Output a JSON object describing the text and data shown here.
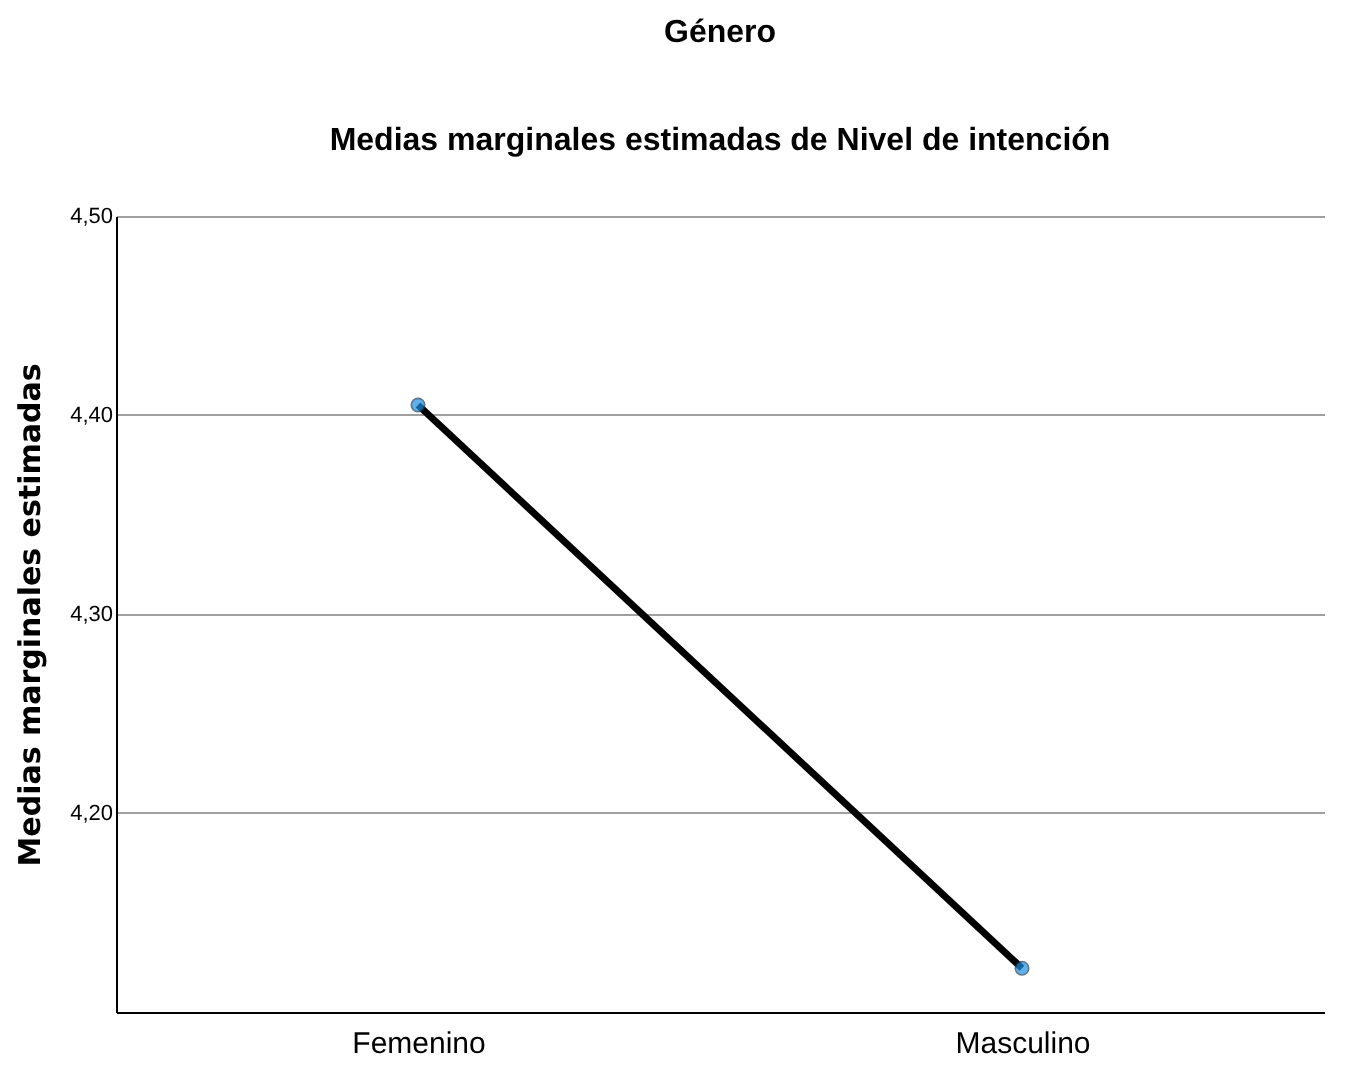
{
  "chart_data": {
    "type": "line",
    "title": "Género",
    "subtitle": "Medias marginales estimadas de Nivel de intención",
    "ylabel": "Medias marginales estimadas",
    "categories": [
      "Femenino",
      "Masculino"
    ],
    "values": [
      4.405,
      4.122
    ],
    "color": "#000000",
    "marker": "circle",
    "line_style": "solid",
    "ylim": [
      4.1,
      4.5
    ],
    "yticks": [
      {
        "value": 4.2,
        "label": "4,20"
      },
      {
        "value": 4.3,
        "label": "4,30"
      },
      {
        "value": 4.4,
        "label": "4,40"
      },
      {
        "value": 4.5,
        "label": "4,50"
      }
    ],
    "grid": "y"
  }
}
